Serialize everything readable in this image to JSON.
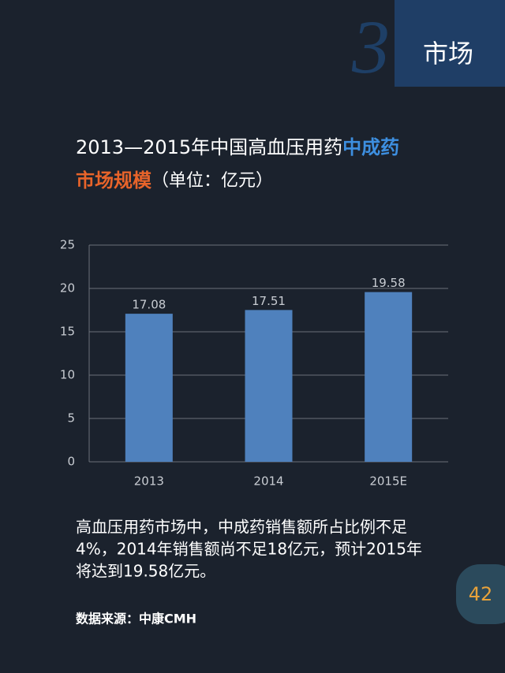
{
  "section": {
    "number": "3",
    "label": "市场"
  },
  "chart_data": {
    "type": "bar",
    "title": [
      {
        "text": "2013—2015年中国高血压用药",
        "color": "#ffffff"
      },
      {
        "text": "中成药",
        "color": "#3d8fe0"
      },
      {
        "text": "市场规模",
        "color": "#e8642a"
      },
      {
        "text": "（单位：亿元）",
        "color": "#ffffff"
      }
    ],
    "categories": [
      "2013",
      "2014",
      "2015E"
    ],
    "values": [
      17.08,
      17.51,
      19.58
    ],
    "color": "#4f81bd",
    "ylim": [
      0,
      25
    ],
    "yticks": [
      0,
      5,
      10,
      15,
      20,
      25
    ],
    "grid": true
  },
  "body": [
    "高血压用药市场中，中成药销售额所占比例不足",
    "4%，2014年销售额尚不足18亿元，预计2015年",
    "将达到19.58亿元。"
  ],
  "source": "数据来源：中康CMH",
  "page_number": "42"
}
